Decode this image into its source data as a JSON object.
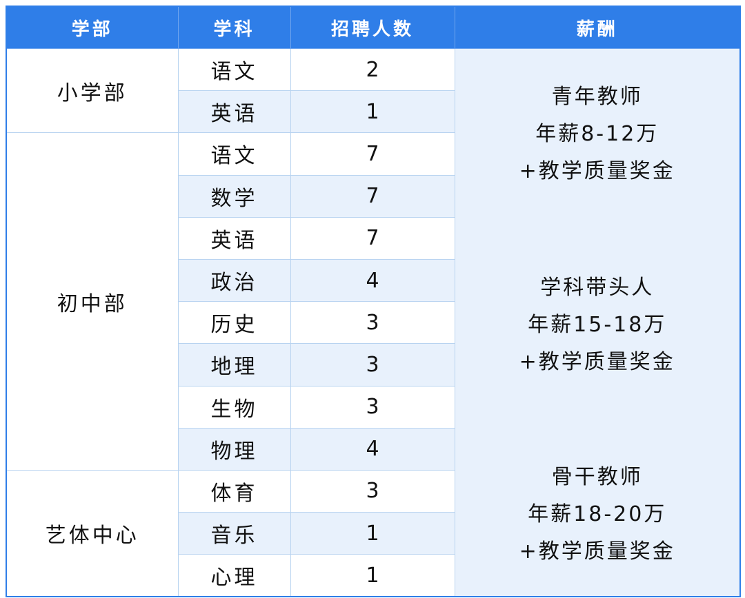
{
  "header": {
    "dept": "学部",
    "subject": "学科",
    "count": "招聘人数",
    "salary": "薪酬"
  },
  "rows": [
    {
      "dept": "小学部",
      "subject": "语文",
      "count": "2"
    },
    {
      "subject": "英语",
      "count": "1"
    },
    {
      "dept": "初中部",
      "subject": "语文",
      "count": "7"
    },
    {
      "subject": "数学",
      "count": "7"
    },
    {
      "subject": "英语",
      "count": "7"
    },
    {
      "subject": "政治",
      "count": "4"
    },
    {
      "subject": "历史",
      "count": "3"
    },
    {
      "subject": "地理",
      "count": "3"
    },
    {
      "subject": "生物",
      "count": "3"
    },
    {
      "subject": "物理",
      "count": "4"
    },
    {
      "dept": "艺体中心",
      "subject": "体育",
      "count": "3"
    },
    {
      "subject": "音乐",
      "count": "1"
    },
    {
      "subject": "心理",
      "count": "1"
    }
  ],
  "salary": [
    {
      "title": "青年教师",
      "pay": "年薪8-12万",
      "bonus": "+教学质量奖金"
    },
    {
      "title": "学科带头人",
      "pay": "年薪15-18万",
      "bonus": "+教学质量奖金"
    },
    {
      "title": "骨干教师",
      "pay": "年薪18-20万",
      "bonus": "+教学质量奖金"
    }
  ],
  "colors": {
    "header": "#2f7ee8",
    "stripe": "#e8f1fc",
    "border": "#b8d3f0"
  }
}
